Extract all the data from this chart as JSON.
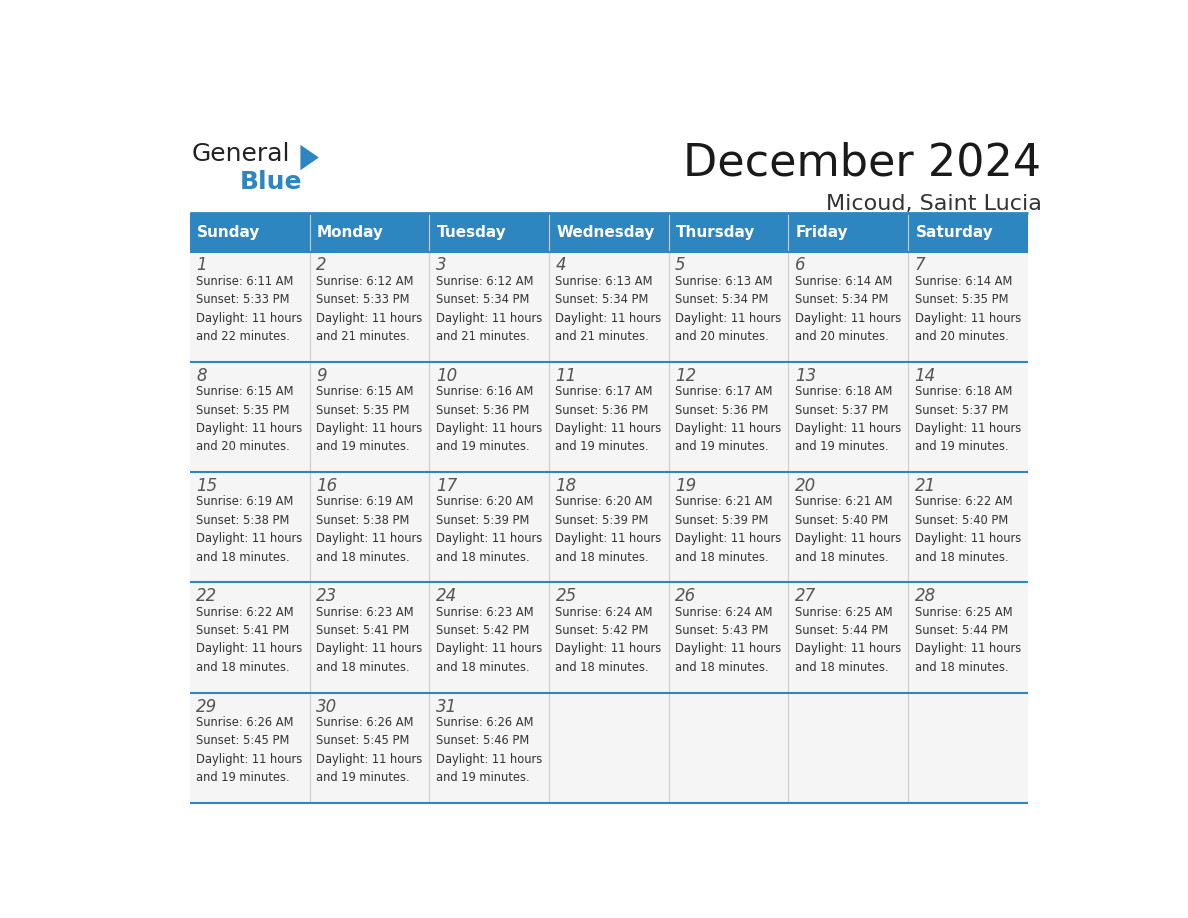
{
  "title": "December 2024",
  "subtitle": "Micoud, Saint Lucia",
  "days_of_week": [
    "Sunday",
    "Monday",
    "Tuesday",
    "Wednesday",
    "Thursday",
    "Friday",
    "Saturday"
  ],
  "header_bg": "#2E86C1",
  "header_text_color": "#FFFFFF",
  "cell_bg": "#F5F5F5",
  "border_color": "#2E86C1",
  "text_color": "#333333",
  "day_number_color": "#555555",
  "calendar_data": [
    [
      {
        "day": 1,
        "sunrise": "6:11 AM",
        "sunset": "5:33 PM",
        "daylight": "11 hours and 22 minutes."
      },
      {
        "day": 2,
        "sunrise": "6:12 AM",
        "sunset": "5:33 PM",
        "daylight": "11 hours and 21 minutes."
      },
      {
        "day": 3,
        "sunrise": "6:12 AM",
        "sunset": "5:34 PM",
        "daylight": "11 hours and 21 minutes."
      },
      {
        "day": 4,
        "sunrise": "6:13 AM",
        "sunset": "5:34 PM",
        "daylight": "11 hours and 21 minutes."
      },
      {
        "day": 5,
        "sunrise": "6:13 AM",
        "sunset": "5:34 PM",
        "daylight": "11 hours and 20 minutes."
      },
      {
        "day": 6,
        "sunrise": "6:14 AM",
        "sunset": "5:34 PM",
        "daylight": "11 hours and 20 minutes."
      },
      {
        "day": 7,
        "sunrise": "6:14 AM",
        "sunset": "5:35 PM",
        "daylight": "11 hours and 20 minutes."
      }
    ],
    [
      {
        "day": 8,
        "sunrise": "6:15 AM",
        "sunset": "5:35 PM",
        "daylight": "11 hours and 20 minutes."
      },
      {
        "day": 9,
        "sunrise": "6:15 AM",
        "sunset": "5:35 PM",
        "daylight": "11 hours and 19 minutes."
      },
      {
        "day": 10,
        "sunrise": "6:16 AM",
        "sunset": "5:36 PM",
        "daylight": "11 hours and 19 minutes."
      },
      {
        "day": 11,
        "sunrise": "6:17 AM",
        "sunset": "5:36 PM",
        "daylight": "11 hours and 19 minutes."
      },
      {
        "day": 12,
        "sunrise": "6:17 AM",
        "sunset": "5:36 PM",
        "daylight": "11 hours and 19 minutes."
      },
      {
        "day": 13,
        "sunrise": "6:18 AM",
        "sunset": "5:37 PM",
        "daylight": "11 hours and 19 minutes."
      },
      {
        "day": 14,
        "sunrise": "6:18 AM",
        "sunset": "5:37 PM",
        "daylight": "11 hours and 19 minutes."
      }
    ],
    [
      {
        "day": 15,
        "sunrise": "6:19 AM",
        "sunset": "5:38 PM",
        "daylight": "11 hours and 18 minutes."
      },
      {
        "day": 16,
        "sunrise": "6:19 AM",
        "sunset": "5:38 PM",
        "daylight": "11 hours and 18 minutes."
      },
      {
        "day": 17,
        "sunrise": "6:20 AM",
        "sunset": "5:39 PM",
        "daylight": "11 hours and 18 minutes."
      },
      {
        "day": 18,
        "sunrise": "6:20 AM",
        "sunset": "5:39 PM",
        "daylight": "11 hours and 18 minutes."
      },
      {
        "day": 19,
        "sunrise": "6:21 AM",
        "sunset": "5:39 PM",
        "daylight": "11 hours and 18 minutes."
      },
      {
        "day": 20,
        "sunrise": "6:21 AM",
        "sunset": "5:40 PM",
        "daylight": "11 hours and 18 minutes."
      },
      {
        "day": 21,
        "sunrise": "6:22 AM",
        "sunset": "5:40 PM",
        "daylight": "11 hours and 18 minutes."
      }
    ],
    [
      {
        "day": 22,
        "sunrise": "6:22 AM",
        "sunset": "5:41 PM",
        "daylight": "11 hours and 18 minutes."
      },
      {
        "day": 23,
        "sunrise": "6:23 AM",
        "sunset": "5:41 PM",
        "daylight": "11 hours and 18 minutes."
      },
      {
        "day": 24,
        "sunrise": "6:23 AM",
        "sunset": "5:42 PM",
        "daylight": "11 hours and 18 minutes."
      },
      {
        "day": 25,
        "sunrise": "6:24 AM",
        "sunset": "5:42 PM",
        "daylight": "11 hours and 18 minutes."
      },
      {
        "day": 26,
        "sunrise": "6:24 AM",
        "sunset": "5:43 PM",
        "daylight": "11 hours and 18 minutes."
      },
      {
        "day": 27,
        "sunrise": "6:25 AM",
        "sunset": "5:44 PM",
        "daylight": "11 hours and 18 minutes."
      },
      {
        "day": 28,
        "sunrise": "6:25 AM",
        "sunset": "5:44 PM",
        "daylight": "11 hours and 18 minutes."
      }
    ],
    [
      {
        "day": 29,
        "sunrise": "6:26 AM",
        "sunset": "5:45 PM",
        "daylight": "11 hours and 19 minutes."
      },
      {
        "day": 30,
        "sunrise": "6:26 AM",
        "sunset": "5:45 PM",
        "daylight": "11 hours and 19 minutes."
      },
      {
        "day": 31,
        "sunrise": "6:26 AM",
        "sunset": "5:46 PM",
        "daylight": "11 hours and 19 minutes."
      },
      null,
      null,
      null,
      null
    ]
  ],
  "logo_color_general": "#222222",
  "logo_color_blue": "#2E86C1",
  "logo_triangle_color": "#2E86C1"
}
